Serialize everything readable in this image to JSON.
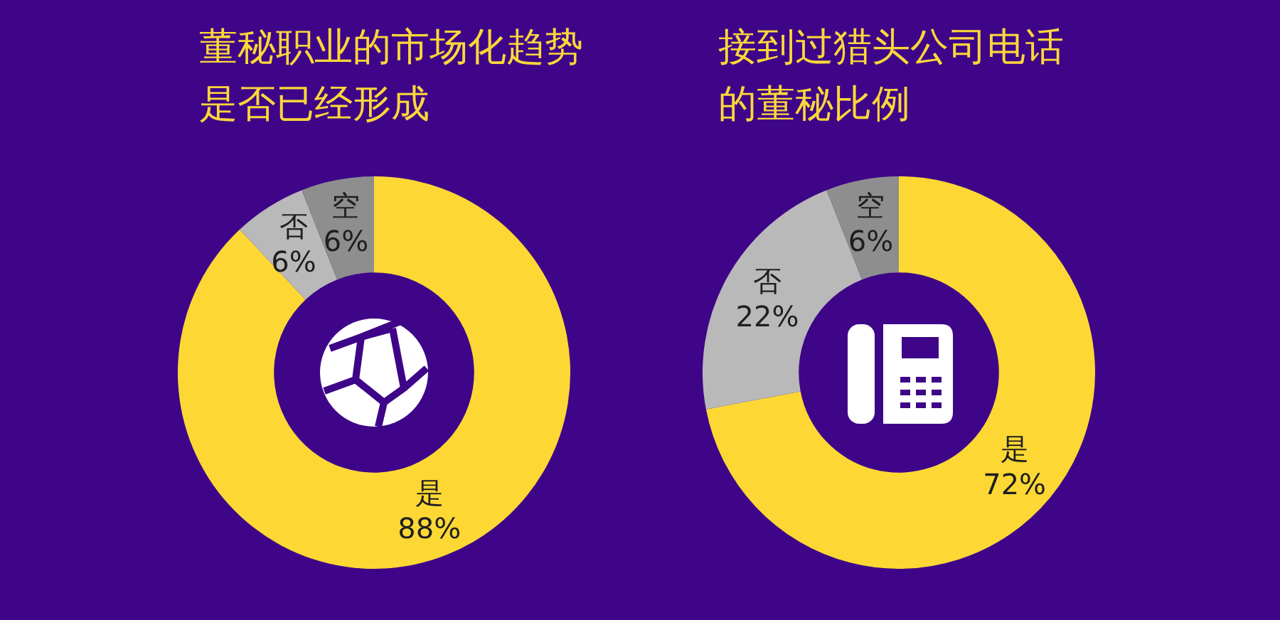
{
  "chart_data": [
    {
      "type": "donut",
      "title": "董秘职业的市场化趋势是否已经形成",
      "categories": [
        "是",
        "否",
        "空"
      ],
      "values": [
        88,
        6,
        6
      ],
      "value_labels": [
        "88%",
        "6%",
        "6%"
      ],
      "colors": [
        "#fdd835",
        "#b9b9b9",
        "#8e8e8e"
      ],
      "legend": false
    },
    {
      "type": "donut",
      "title": "接到过猎头公司电话的董秘比例",
      "categories": [
        "是",
        "否",
        "空"
      ],
      "values": [
        72,
        22,
        6
      ],
      "value_labels": [
        "72%",
        "22%",
        "6%"
      ],
      "colors": [
        "#fdd835",
        "#b9b9b9",
        "#8e8e8e"
      ],
      "legend": false
    }
  ]
}
